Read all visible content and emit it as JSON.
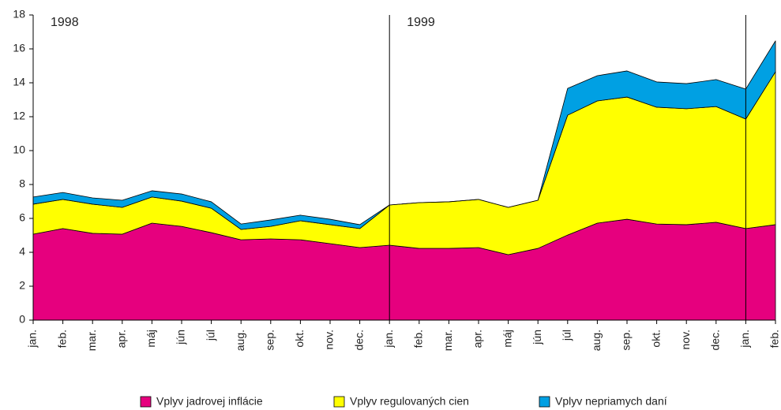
{
  "chart_data": {
    "type": "stacked-area",
    "categories": [
      "jan.",
      "feb.",
      "mar.",
      "apr.",
      "máj",
      "jún",
      "júl",
      "aug.",
      "sep.",
      "okt.",
      "nov.",
      "dec.",
      "jan.",
      "feb.",
      "mar.",
      "apr.",
      "máj",
      "jún",
      "júl",
      "aug.",
      "sep.",
      "okt.",
      "nov.",
      "dec.",
      "jan.",
      "feb."
    ],
    "years": [
      "1998",
      "1999"
    ],
    "series": [
      {
        "name": "Vplyv jadrovej inflácie",
        "color": "#e6007e",
        "values": [
          5.07,
          5.4,
          5.12,
          5.07,
          5.72,
          5.53,
          5.16,
          4.74,
          4.79,
          4.74,
          4.51,
          4.28,
          4.42,
          4.23,
          4.23,
          4.28,
          3.86,
          4.23,
          5.02,
          5.72,
          5.95,
          5.67,
          5.63,
          5.77,
          5.4,
          5.63
        ]
      },
      {
        "name": "Vplyv regulovaných cien",
        "color": "#ffff00",
        "values": [
          1.77,
          1.72,
          1.72,
          1.58,
          1.54,
          1.49,
          1.44,
          0.61,
          0.74,
          1.12,
          1.12,
          1.12,
          2.37,
          2.7,
          2.75,
          2.84,
          2.79,
          2.84,
          7.07,
          7.21,
          7.21,
          6.89,
          6.84,
          6.83,
          6.46,
          9.02
        ]
      },
      {
        "name": "Vplyv nepriamych daní",
        "color": "#00a0e3",
        "values": [
          0.42,
          0.41,
          0.37,
          0.42,
          0.37,
          0.42,
          0.38,
          0.32,
          0.38,
          0.33,
          0.32,
          0.23,
          0,
          0,
          0,
          0,
          0,
          0,
          1.58,
          1.49,
          1.54,
          1.49,
          1.48,
          1.59,
          1.77,
          1.82
        ]
      }
    ],
    "ylim": [
      0,
      18
    ],
    "yticks": [
      0,
      2,
      4,
      6,
      8,
      10,
      12,
      14,
      16,
      18
    ]
  }
}
